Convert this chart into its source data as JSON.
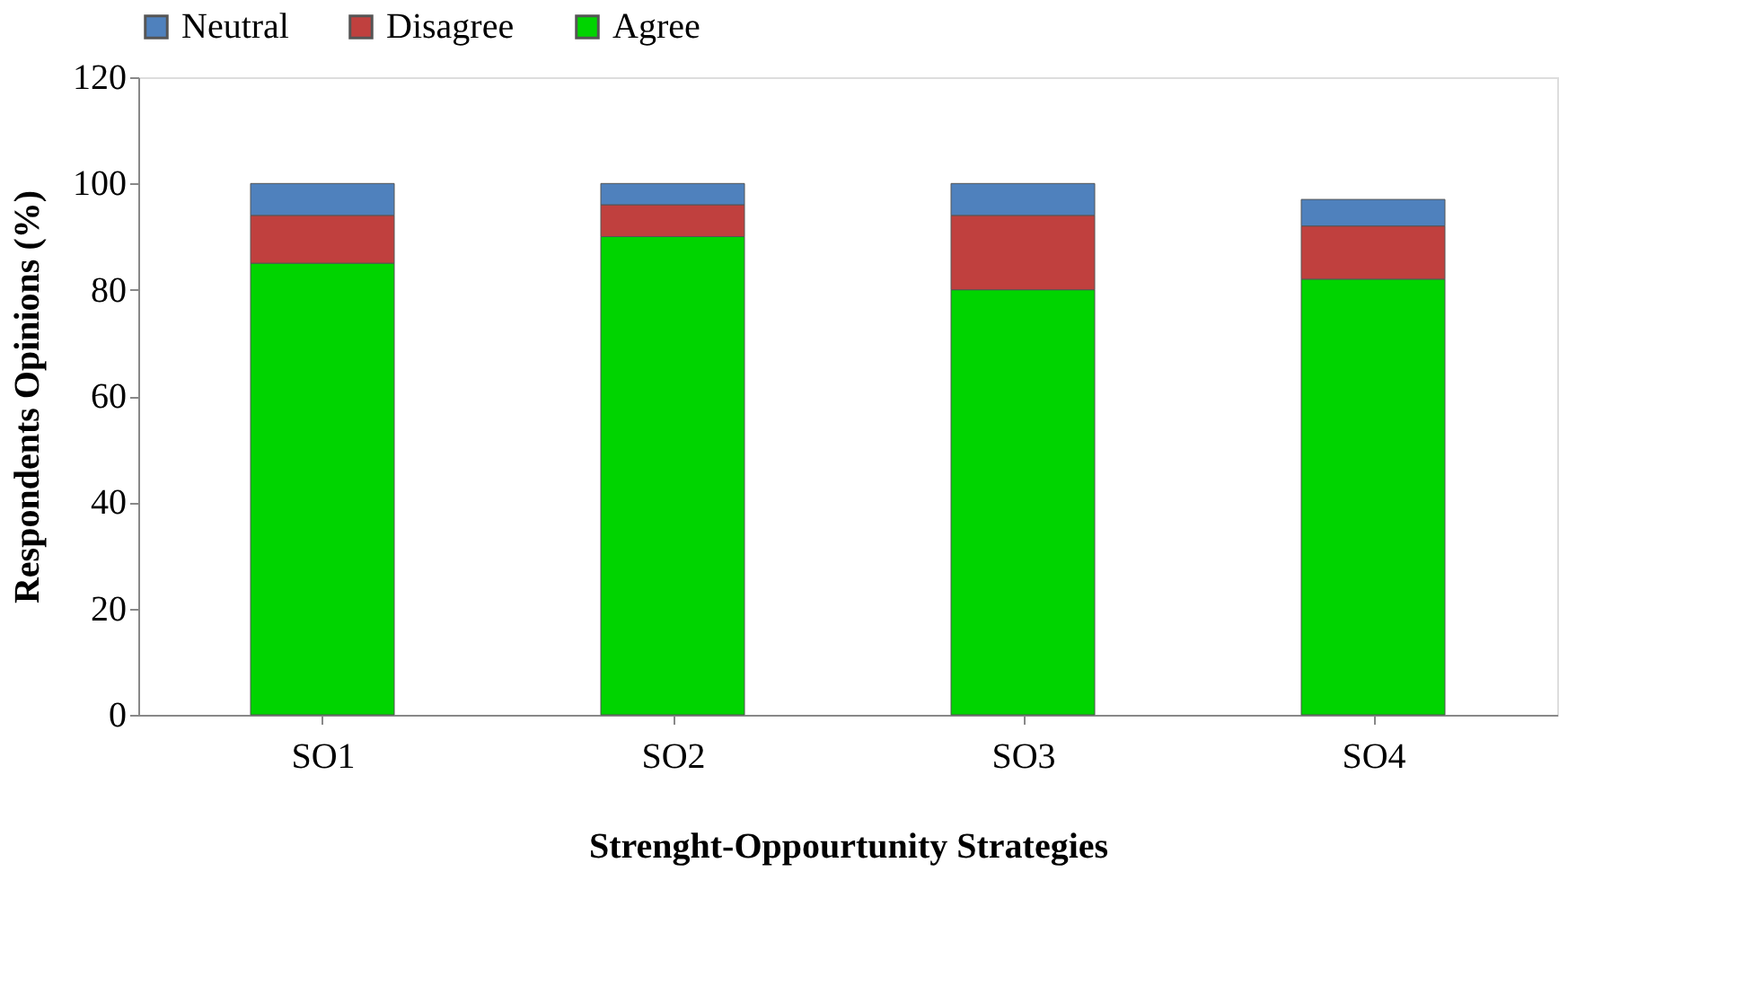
{
  "chart_data": {
    "type": "bar",
    "stacked": true,
    "xlabel": "Strenght-Oppourtunity Strategies",
    "ylabel": "Respondents Opinions (%)",
    "categories": [
      "SO1",
      "SO2",
      "SO3",
      "SO4"
    ],
    "series": [
      {
        "name": "Agree",
        "color": "#00d400",
        "values": [
          85,
          90,
          80,
          82
        ]
      },
      {
        "name": "Disagree",
        "color": "#c0403e",
        "values": [
          9,
          6,
          14,
          10
        ]
      },
      {
        "name": "Neutral",
        "color": "#4f81bd",
        "values": [
          6,
          4,
          6,
          5
        ]
      }
    ],
    "ylim": [
      0,
      120
    ],
    "yticks": [
      0,
      20,
      40,
      60,
      80,
      100,
      120
    ],
    "grid": false,
    "legend": "top"
  }
}
